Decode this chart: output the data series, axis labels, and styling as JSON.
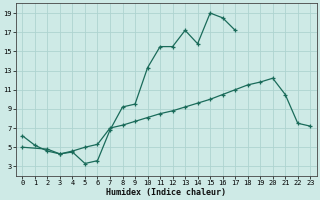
{
  "xlabel": "Humidex (Indice chaleur)",
  "bg_color": "#ceeae6",
  "grid_color": "#aed4d0",
  "line_color": "#1a6b5a",
  "xlim": [
    -0.5,
    23.5
  ],
  "ylim": [
    2.0,
    20.0
  ],
  "xticks": [
    0,
    1,
    2,
    3,
    4,
    5,
    6,
    7,
    8,
    9,
    10,
    11,
    12,
    13,
    14,
    15,
    16,
    17,
    18,
    19,
    20,
    21,
    22,
    23
  ],
  "yticks": [
    3,
    5,
    7,
    9,
    11,
    13,
    15,
    17,
    19
  ],
  "line1_x": [
    0,
    1,
    2,
    3,
    4,
    5,
    6,
    7,
    8,
    9,
    10,
    11,
    12,
    13,
    14,
    15,
    16,
    17
  ],
  "line1_y": [
    6.2,
    5.2,
    4.6,
    4.3,
    4.5,
    3.3,
    3.6,
    6.8,
    9.2,
    9.5,
    13.3,
    15.5,
    15.5,
    17.2,
    15.8,
    19.0,
    18.5,
    17.2
  ],
  "line2_x": [
    0,
    2,
    3,
    4,
    5,
    6,
    7,
    8,
    9,
    10,
    11,
    12,
    13,
    14,
    15,
    16,
    17,
    18,
    19,
    20,
    21,
    22,
    23
  ],
  "line2_y": [
    5.0,
    4.8,
    4.3,
    4.6,
    5.0,
    5.3,
    7.0,
    7.3,
    7.7,
    8.1,
    8.5,
    8.8,
    9.2,
    9.6,
    10.0,
    10.5,
    11.0,
    11.5,
    11.8,
    12.2,
    10.5,
    7.5,
    7.2
  ]
}
